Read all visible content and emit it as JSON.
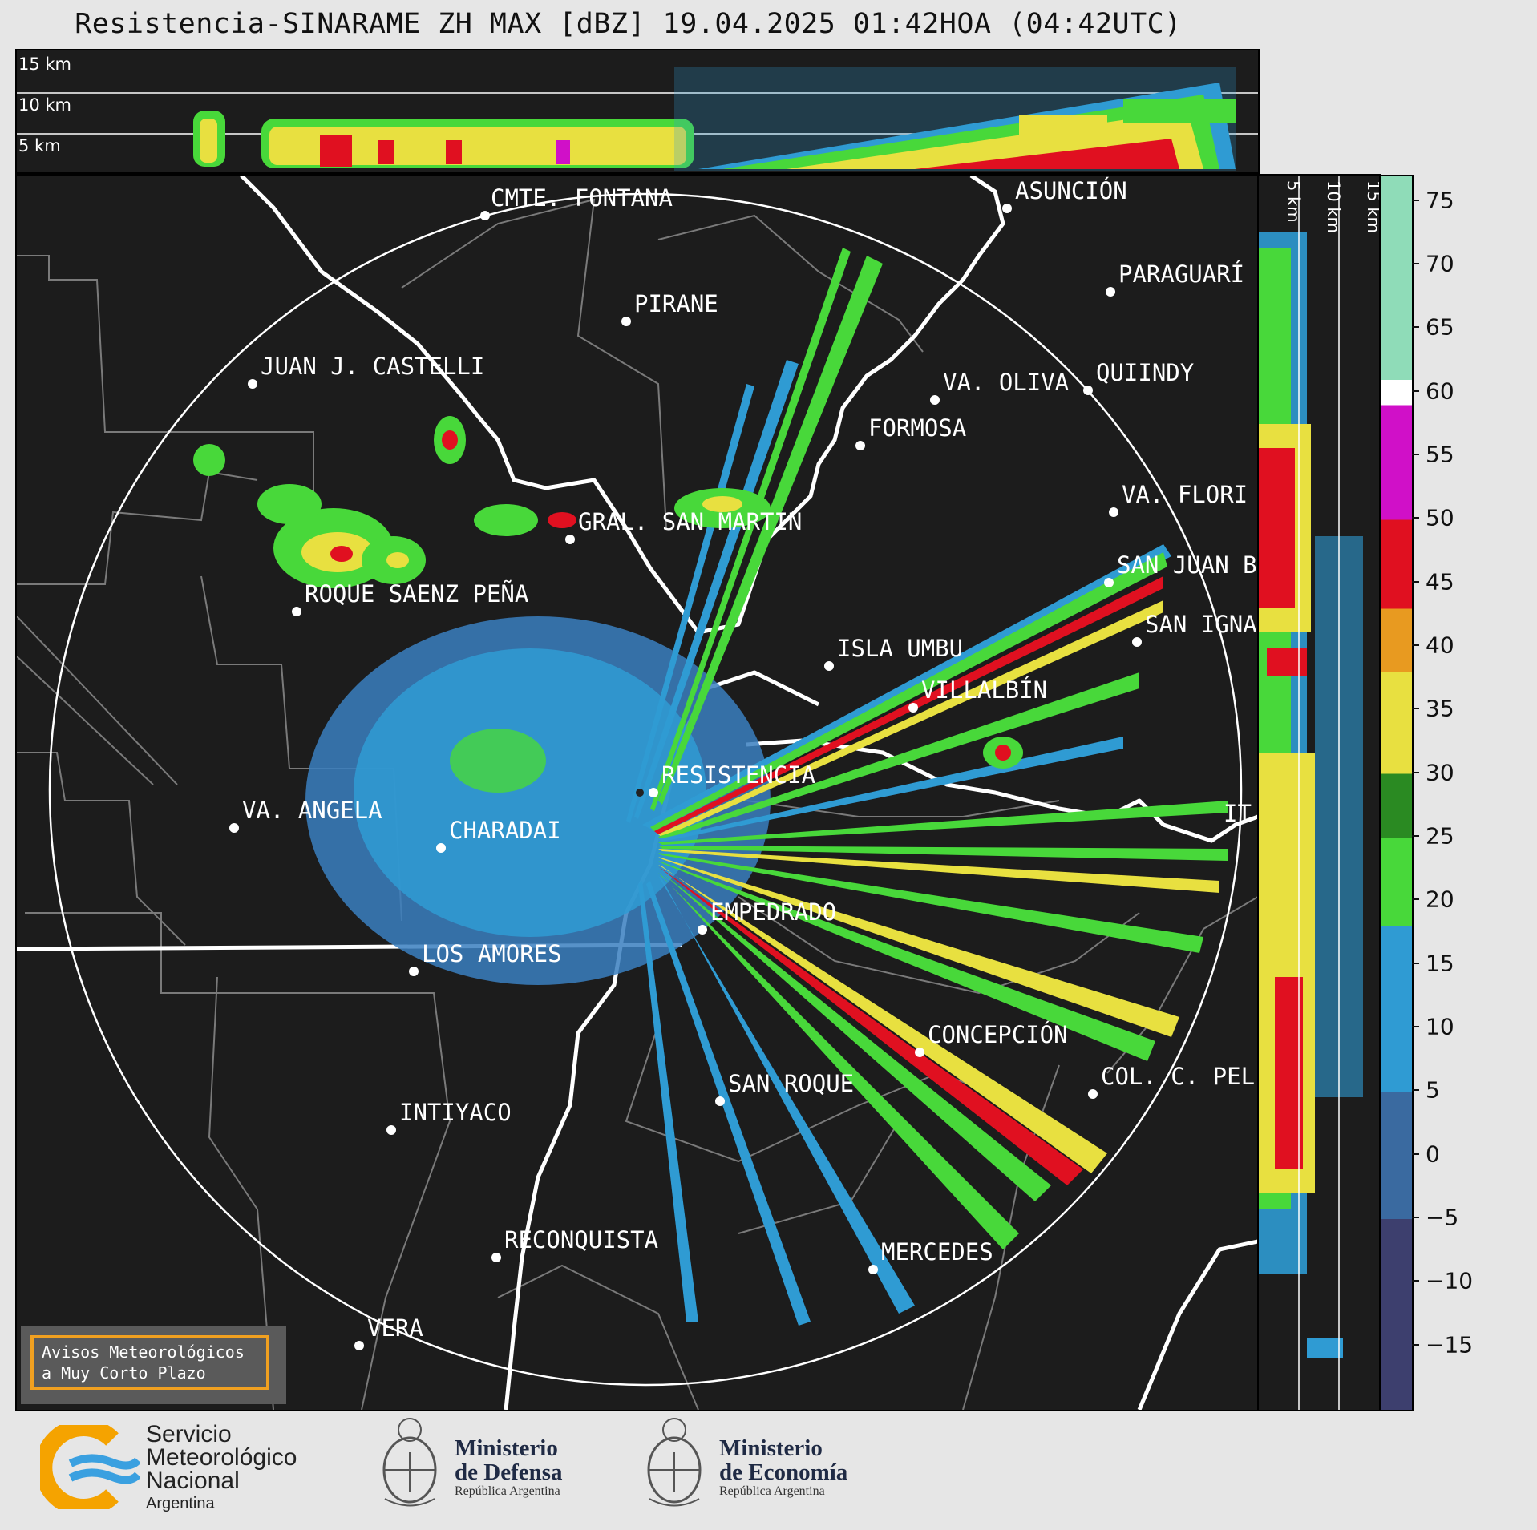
{
  "title": "Resistencia-SINARAME ZH MAX [dBZ] 19.04.2025 01:42HOA (04:42UTC)",
  "top_panel": {
    "km_labels": [
      "15 km",
      "10 km",
      "5 km"
    ]
  },
  "side_panel": {
    "km_labels": [
      "5 km",
      "10 km",
      "15 km"
    ]
  },
  "cities": [
    {
      "name": "CMTE. FONTANA"
    },
    {
      "name": "ASUNCIÓN"
    },
    {
      "name": "PARAGUARÍ"
    },
    {
      "name": "PIRANE"
    },
    {
      "name": "JUAN J. CASTELLI"
    },
    {
      "name": "VA. OLIVA"
    },
    {
      "name": "QUIINDY"
    },
    {
      "name": "FORMOSA"
    },
    {
      "name": "VA. FLORI"
    },
    {
      "name": "GRAL. SAN MARTIN"
    },
    {
      "name": "SAN JUAN B"
    },
    {
      "name": "ROQUE SAENZ PEÑA"
    },
    {
      "name": "SAN IGNA"
    },
    {
      "name": "ISLA UMBU"
    },
    {
      "name": "VILLALBÍN"
    },
    {
      "name": "RESISTENCIA"
    },
    {
      "name": "VA. ANGELA"
    },
    {
      "name": "CHARADAI"
    },
    {
      "name": "IT"
    },
    {
      "name": "EMPEDRADO"
    },
    {
      "name": "LOS AMORES"
    },
    {
      "name": "CONCEPCIÓN"
    },
    {
      "name": "SAN ROQUE"
    },
    {
      "name": "COL. C. PEL"
    },
    {
      "name": "INTIYACO"
    },
    {
      "name": "RECONQUISTA"
    },
    {
      "name": "MERCEDES"
    },
    {
      "name": "VERA"
    }
  ],
  "colorbar": {
    "unit": "dBZ",
    "min": -20,
    "max": 77,
    "ticks": [
      "75",
      "70",
      "65",
      "60",
      "55",
      "50",
      "45",
      "40",
      "35",
      "30",
      "25",
      "20",
      "15",
      "10",
      "5",
      "0",
      "−5",
      "−10",
      "−15"
    ],
    "colors": [
      {
        "from": -20,
        "to": -5,
        "color": "#3d3f6e"
      },
      {
        "from": -5,
        "to": 5,
        "color": "#3a6aa0"
      },
      {
        "from": 5,
        "to": 18,
        "color": "#2f9bd3"
      },
      {
        "from": 18,
        "to": 25,
        "color": "#48d83a"
      },
      {
        "from": 25,
        "to": 30,
        "color": "#2a8a22"
      },
      {
        "from": 30,
        "to": 38,
        "color": "#e8e040"
      },
      {
        "from": 38,
        "to": 43,
        "color": "#e89a20"
      },
      {
        "from": 43,
        "to": 50,
        "color": "#e01020"
      },
      {
        "from": 50,
        "to": 59,
        "color": "#d010c8"
      },
      {
        "from": 59,
        "to": 61,
        "color": "#ffffff"
      },
      {
        "from": 61,
        "to": 77,
        "color": "#8fdcb8"
      }
    ]
  },
  "avisos": {
    "line1": "Avisos Meteorológicos",
    "line2": "a Muy Corto Plazo"
  },
  "logos": {
    "smn": {
      "line1": "Servicio",
      "line2": "Meteorológico",
      "line3": "Nacional",
      "line4": "Argentina"
    },
    "defensa": {
      "line1": "Ministerio",
      "line2": "de Defensa",
      "line3": "República Argentina"
    },
    "economia": {
      "line1": "Ministerio",
      "line2": "de Economía",
      "line3": "República Argentina"
    }
  }
}
